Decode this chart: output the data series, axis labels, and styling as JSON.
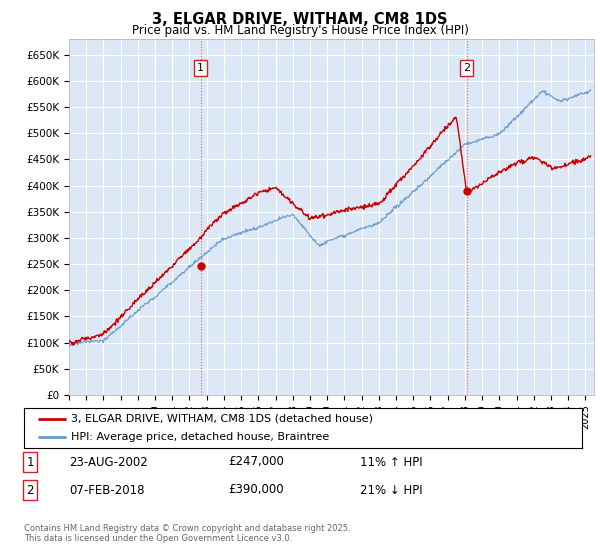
{
  "title": "3, ELGAR DRIVE, WITHAM, CM8 1DS",
  "subtitle": "Price paid vs. HM Land Registry's House Price Index (HPI)",
  "ylim": [
    0,
    680000
  ],
  "xlim_start": 1995.0,
  "xlim_end": 2025.5,
  "background_color": "#dce8f5",
  "fig_bg_color": "#ffffff",
  "grid_color": "#ffffff",
  "red_line_color": "#cc0000",
  "blue_line_color": "#6699cc",
  "sale1_date": "23-AUG-2002",
  "sale1_price": 247000,
  "sale1_label": "11% ↑ HPI",
  "sale1_year": 2002.65,
  "sale2_date": "07-FEB-2018",
  "sale2_price": 390000,
  "sale2_label": "21% ↓ HPI",
  "sale2_year": 2018.1,
  "legend_line1": "3, ELGAR DRIVE, WITHAM, CM8 1DS (detached house)",
  "legend_line2": "HPI: Average price, detached house, Braintree",
  "footer": "Contains HM Land Registry data © Crown copyright and database right 2025.\nThis data is licensed under the Open Government Licence v3.0.",
  "annotation1_num": "1",
  "annotation2_num": "2"
}
